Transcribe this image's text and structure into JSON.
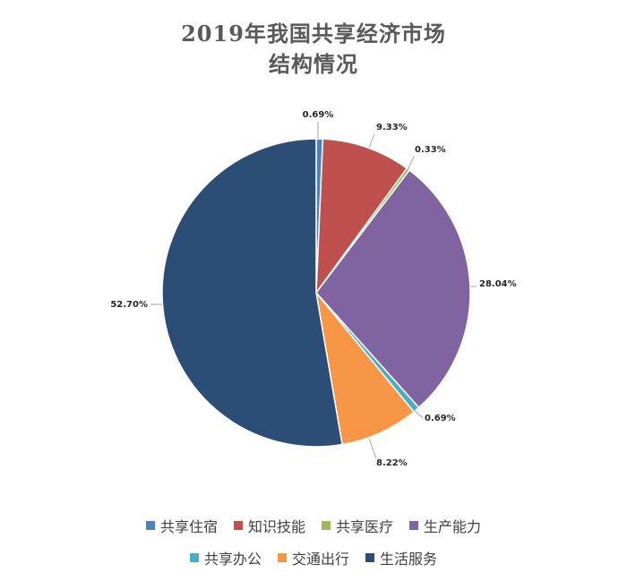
{
  "chart_data": {
    "type": "pie",
    "title_lines": [
      "2019年我国共享经济市场",
      "结构情况"
    ],
    "legend_placement": "bottom",
    "slices": [
      {
        "name": "共享住宿",
        "value": 0.69,
        "label": "0.69%",
        "color": "#4F81BD"
      },
      {
        "name": "知识技能",
        "value": 9.33,
        "label": "9.33%",
        "color": "#C0504D"
      },
      {
        "name": "共享医疗",
        "value": 0.33,
        "label": "0.33%",
        "color": "#9BBB59"
      },
      {
        "name": "生产能力",
        "value": 28.04,
        "label": "28.04%",
        "color": "#8064A2"
      },
      {
        "name": "共享办公",
        "value": 0.69,
        "label": "0.69%",
        "color": "#4BACC6"
      },
      {
        "name": "交通出行",
        "value": 8.22,
        "label": "8.22%",
        "color": "#F79646"
      },
      {
        "name": "生活服务",
        "value": 52.7,
        "label": "52.70%",
        "color": "#2C4D75"
      }
    ],
    "legend_rows": [
      [
        "共享住宿",
        "知识技能",
        "共享医疗",
        "生产能力"
      ],
      [
        "共享办公",
        "交通出行",
        "生活服务"
      ]
    ]
  }
}
